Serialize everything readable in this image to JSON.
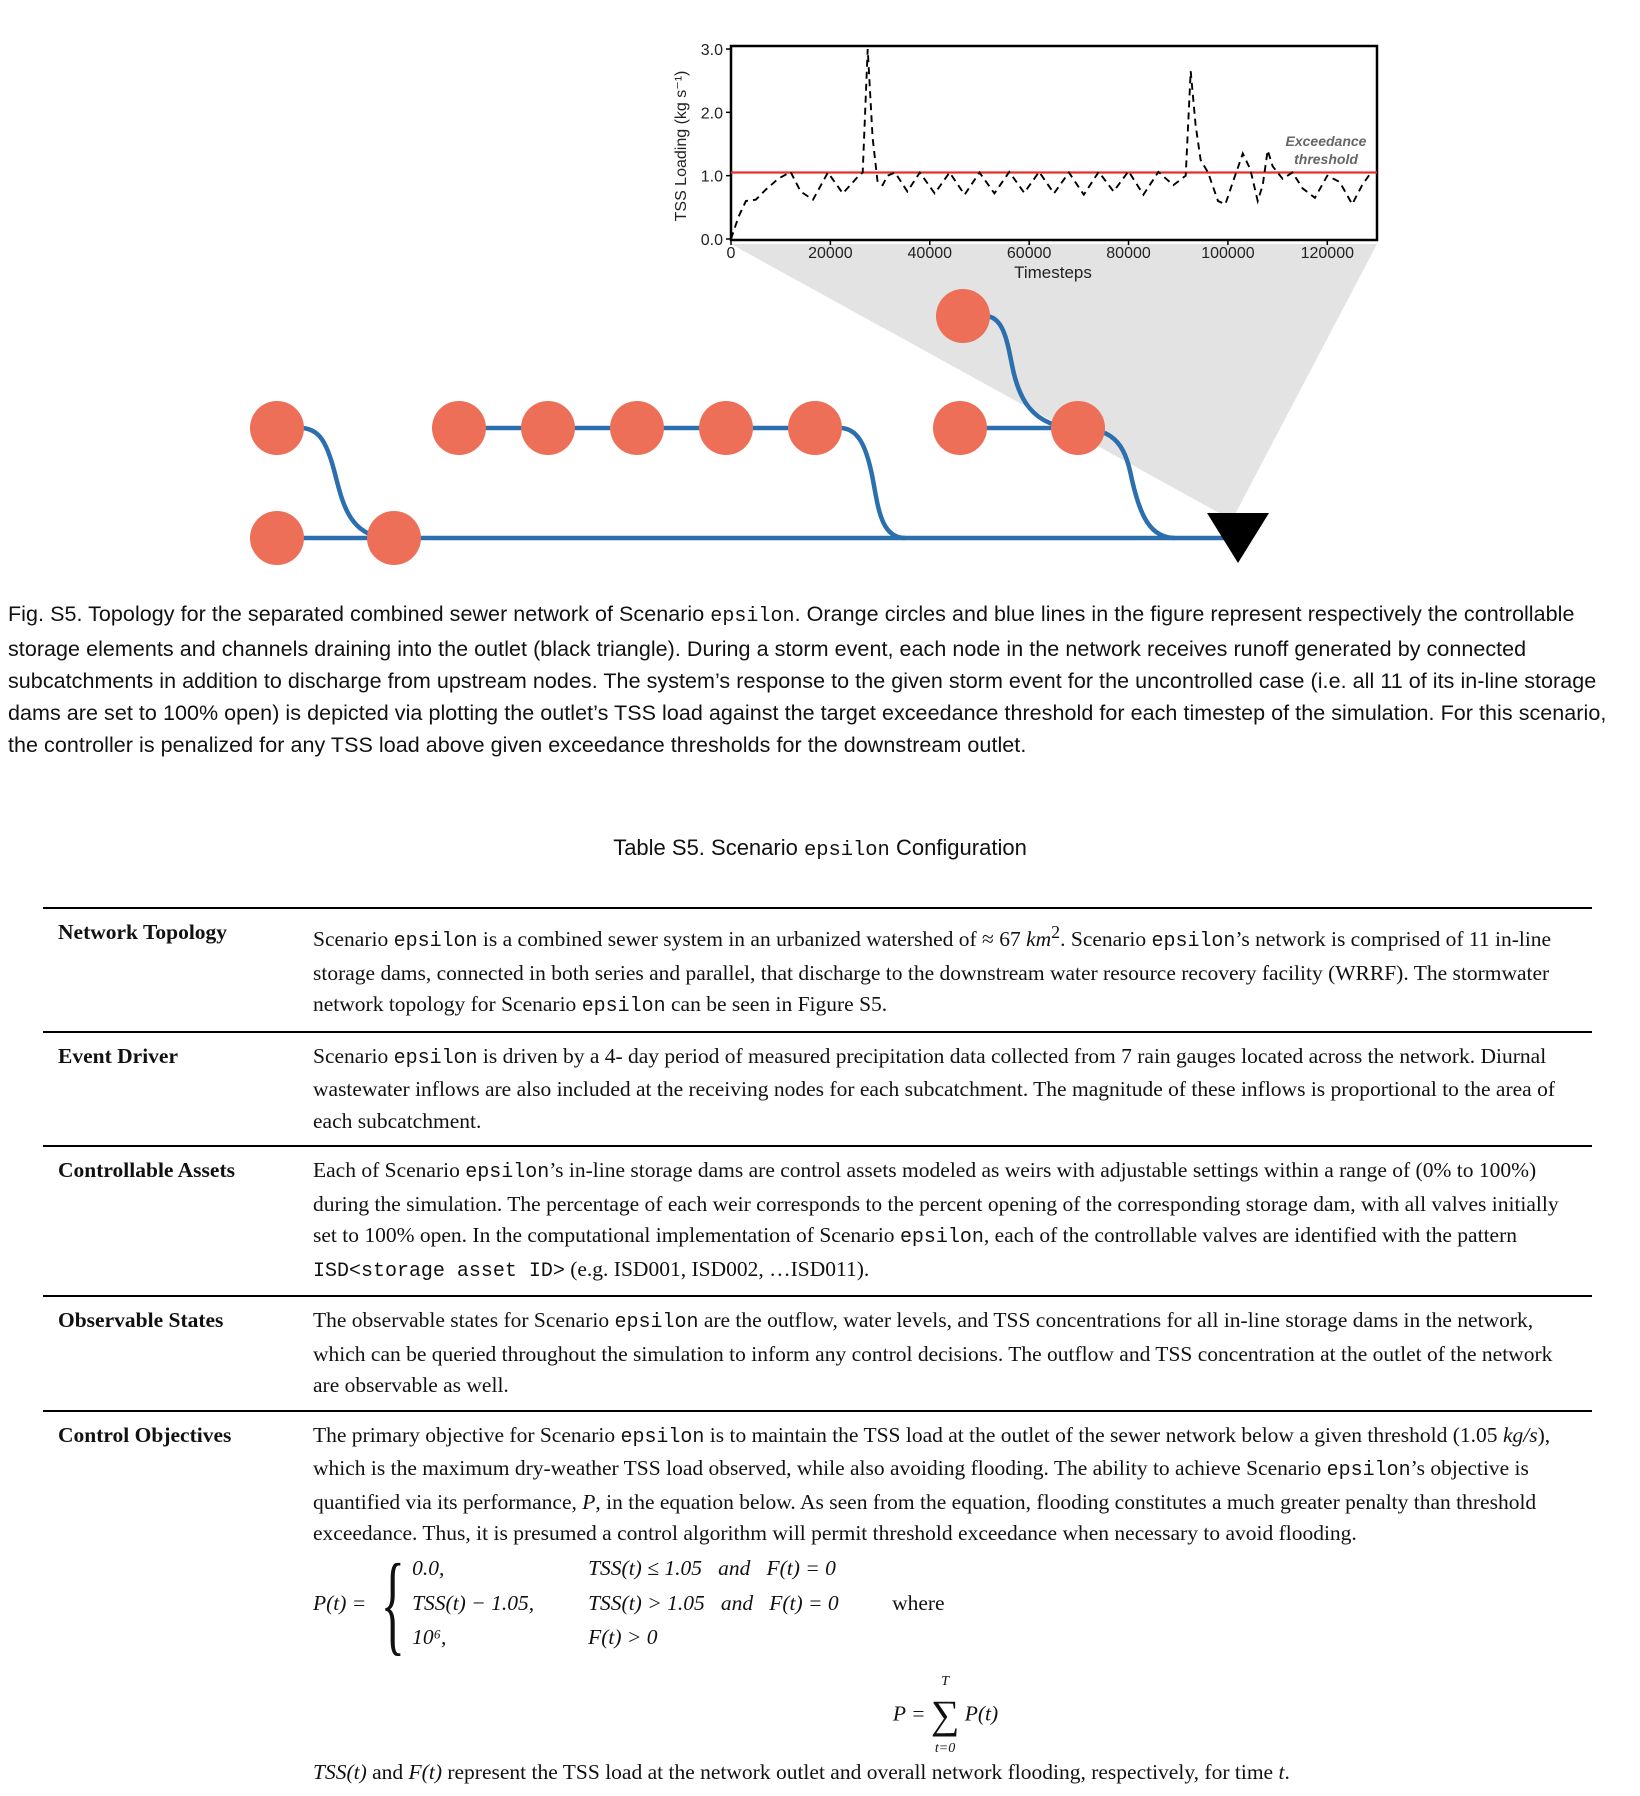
{
  "figure": {
    "chart_data": {
      "type": "line",
      "ylabel": "TSS Loading (kg s⁻¹)",
      "xlabel": "Timesteps",
      "ylim": [
        0,
        3.0
      ],
      "xlim": [
        0,
        130000
      ],
      "yticks": [
        "0.0",
        "1.0",
        "2.0",
        "3.0"
      ],
      "xticks": [
        "0",
        "20000",
        "40000",
        "60000",
        "80000",
        "100000",
        "120000"
      ],
      "grid": false,
      "threshold": {
        "value": 1.05,
        "label_line1": "Exceedance",
        "label_line2": "threshold",
        "color": "#e8302a"
      },
      "series": [
        {
          "style": "dashed",
          "color": "#000000",
          "x": [
            0,
            1500,
            3000,
            5000,
            7000,
            9500,
            12000,
            14000,
            16500,
            19500,
            22500,
            25500,
            26500,
            27500,
            28500,
            29500,
            30500,
            31500,
            33000,
            35500,
            38000,
            41000,
            44000,
            47000,
            50000,
            53000,
            56000,
            59000,
            62000,
            65000,
            68000,
            71000,
            74000,
            77000,
            80000,
            83000,
            86000,
            89000,
            91500,
            92500,
            93500,
            94500,
            96000,
            98000,
            99500,
            101000,
            103000,
            104500,
            106000,
            107000,
            108000,
            109000,
            111000,
            113000,
            115000,
            117500,
            120000,
            122500,
            125000,
            127000,
            128800
          ],
          "y": [
            0.0,
            0.35,
            0.6,
            0.62,
            0.78,
            0.95,
            1.06,
            0.75,
            0.62,
            1.05,
            0.72,
            0.98,
            1.05,
            3.0,
            1.6,
            0.9,
            0.85,
            1.0,
            1.05,
            0.75,
            1.05,
            0.72,
            1.05,
            0.7,
            1.05,
            0.72,
            1.06,
            0.73,
            1.06,
            0.72,
            1.05,
            0.7,
            1.06,
            0.75,
            1.07,
            0.7,
            1.06,
            0.85,
            1.0,
            2.65,
            1.8,
            1.25,
            1.05,
            0.6,
            0.55,
            0.9,
            1.35,
            1.1,
            0.6,
            0.85,
            1.4,
            1.15,
            0.95,
            1.05,
            0.8,
            0.65,
            1.0,
            0.9,
            0.55,
            0.85,
            1.05
          ]
        }
      ]
    },
    "network": {
      "node_color": "#ee6f57",
      "channel_color": "#2b6fae",
      "outlet_color": "#000000"
    }
  },
  "caption": {
    "part1": "Fig. S5.  Topology for the separated combined sewer network of Scenario ",
    "code": "epsilon",
    "part2": ". Orange circles and blue lines in the figure represent respectively the controllable storage elements and channels draining into the outlet (black triangle). During a storm event, each node in the network receives runoff generated by connected subcatchments in addition to discharge from upstream nodes. The system’s response to the given storm event for the uncontrolled case (i.e. all 11 of its in-line storage dams are set to 100% open) is depicted via plotting the outlet’s TSS load against the target exceedance threshold for each timestep of the simulation. For this scenario, the controller is penalized for any TSS load above given exceedance thresholds for the downstream outlet."
  },
  "table": {
    "title_prefix": "Table S5.  Scenario ",
    "title_code": "epsilon",
    "title_suffix": " Configuration",
    "rows": [
      {
        "label": "Network Topology",
        "a": "Scenario ",
        "code": "epsilon",
        "b": " is a combined sewer system in an urbanized watershed of ≈ 67 ",
        "unit": "km",
        "sup": "2",
        "c": ". Scenario ",
        "code2": "epsilon",
        "d": "’s network is comprised of 11 in-line storage dams, connected in both series and parallel, that discharge to the downstream water resource recovery facility (WRRF). The stormwater network topology for Scenario ",
        "code3": "epsilon",
        "e": " can be seen in Figure S5."
      },
      {
        "label": "Event Driver",
        "a": "Scenario ",
        "code": "epsilon",
        "b": " is driven by a 4- day period of measured precipitation data collected from 7 rain gauges located across the network. Diurnal wastewater inflows are also included at the receiving nodes for each subcatchment. The magnitude of these inflows is proportional to the area of each subcatchment."
      },
      {
        "label": "Controllable Assets",
        "a": "Each of Scenario ",
        "code": "epsilon",
        "b": "’s in-line storage dams are control assets modeled as weirs with adjustable settings within a range of (0% to 100%) during the simulation. The percentage of each weir corresponds to the percent opening of the corresponding storage dam, with all valves initially set to 100% open. In the computational implementation of Scenario ",
        "code2": "epsilon",
        "c": ", each of the controllable valves are identified with the pattern ",
        "code3": "ISD<storage asset ID>",
        "d": " (e.g. ISD001, ISD002, …ISD011)."
      },
      {
        "label": "Observable States",
        "a": "The observable states for Scenario ",
        "code": "epsilon",
        "b": " are the outflow, water levels, and TSS concentrations for all in-line storage dams in the network, which can be queried throughout the simulation to inform any control decisions. The outflow and TSS concentration at the outlet of the network are observable as well."
      },
      {
        "label": "Control Objectives",
        "a": "The primary objective for Scenario ",
        "code": "epsilon",
        "b": " is to maintain the TSS load at the outlet of the sewer network below a given threshold (1.05 ",
        "unit": "kg/s",
        "c": "), which is the maximum dry-weather TSS load observed, while also avoiding flooding. The ability to achieve Scenario ",
        "code2": "epsilon",
        "d": "’s objective is quantified via its performance, ",
        "pvar": "P",
        "e": ", in the equation below. As seen from the equation, flooding constitutes a much greater penalty than threshold exceedance. Thus, it is presumed a control algorithm will permit threshold exceedance when necessary to avoid flooding. ",
        "eq_lhs": "P(t) =",
        "cases": [
          {
            "val": "0.0,",
            "cond": "TSS(t) ≤ 1.05   and   F(t) = 0"
          },
          {
            "val": "TSS(t) − 1.05,",
            "cond": "TSS(t) > 1.05   and   F(t) = 0"
          },
          {
            "val": "10⁶,",
            "cond": "F(t) > 0"
          }
        ],
        "where": "where",
        "sum_lhs": "P =",
        "sum_top": "T",
        "sum_sym": "∑",
        "sum_bottom": "t=0",
        "sum_rhs": "P(t)",
        "final_tss": "TSS(t)",
        "final_and": " and ",
        "final_f": "F(t)",
        "final_rest": " represent the TSS load at the network outlet and overall network flooding, respectively, for time ",
        "final_t": "t",
        "final_end": "."
      }
    ]
  }
}
